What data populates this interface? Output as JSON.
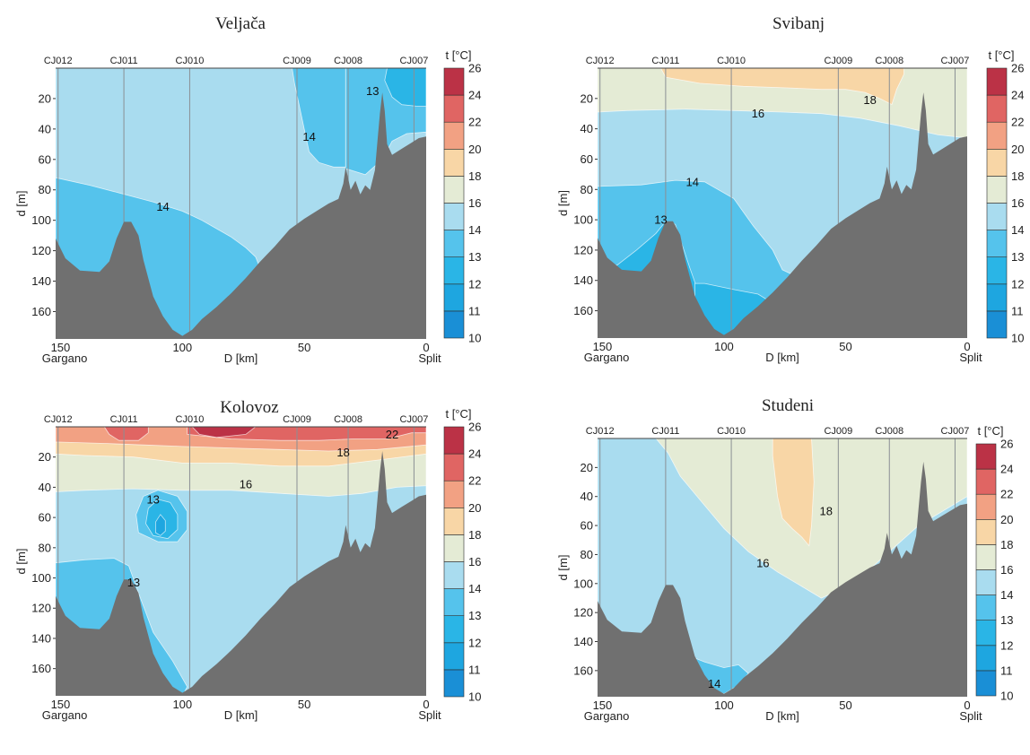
{
  "figure": {
    "colorbar": {
      "label": "t [°C]",
      "levels": [
        10,
        11,
        12,
        13,
        14,
        16,
        18,
        20,
        22,
        24,
        26
      ],
      "colors": [
        "#1a8fd6",
        "#1ea6e0",
        "#2ab5e6",
        "#55c3ec",
        "#a9dcef",
        "#e4ebd5",
        "#f8d6a6",
        "#f2a183",
        "#e06563",
        "#bb3246"
      ]
    }
  },
  "chart_data": [
    {
      "type": "heatmap",
      "title": "Veljača",
      "xlabel": "D [km]",
      "ylabel": "d [m]",
      "xlim": [
        152,
        0
      ],
      "ylim": [
        178,
        0
      ],
      "x_ticks": [
        "150",
        "100",
        "50",
        "0"
      ],
      "x_endpoints": [
        "Gargano",
        "Split"
      ],
      "y_ticks": [
        "20",
        "40",
        "60",
        "80",
        "100",
        "120",
        "140",
        "160"
      ],
      "stations": [
        {
          "name": "CJ012",
          "km": 151
        },
        {
          "name": "CJ011",
          "km": 124
        },
        {
          "name": "CJ010",
          "km": 97
        },
        {
          "name": "CJ009",
          "km": 53
        },
        {
          "name": "CJ008",
          "km": 32
        },
        {
          "name": "CJ007",
          "km": 5
        }
      ],
      "isotherm_labels": [
        {
          "text": "13",
          "km": 22,
          "depth": 15
        },
        {
          "text": "14",
          "km": 48,
          "depth": 45
        },
        {
          "text": "14",
          "km": 108,
          "depth": 91
        }
      ]
    },
    {
      "type": "heatmap",
      "title": "Svibanj",
      "xlabel": "D [km]",
      "ylabel": "d [m]",
      "xlim": [
        152,
        0
      ],
      "ylim": [
        178,
        0
      ],
      "x_ticks": [
        "150",
        "100",
        "50",
        "0"
      ],
      "x_endpoints": [
        "Gargano",
        "Split"
      ],
      "y_ticks": [
        "20",
        "40",
        "60",
        "80",
        "100",
        "120",
        "140",
        "160"
      ],
      "stations": [
        {
          "name": "CJ012",
          "km": 151
        },
        {
          "name": "CJ011",
          "km": 124
        },
        {
          "name": "CJ010",
          "km": 97
        },
        {
          "name": "CJ009",
          "km": 53
        },
        {
          "name": "CJ008",
          "km": 32
        },
        {
          "name": "CJ007",
          "km": 5
        }
      ],
      "isotherm_labels": [
        {
          "text": "18",
          "km": 40,
          "depth": 21
        },
        {
          "text": "16",
          "km": 86,
          "depth": 30
        },
        {
          "text": "14",
          "km": 113,
          "depth": 75
        },
        {
          "text": "13",
          "km": 126,
          "depth": 100
        }
      ]
    },
    {
      "type": "heatmap",
      "title": "Kolovoz",
      "xlabel": "D [km]",
      "ylabel": "d [m]",
      "xlim": [
        152,
        0
      ],
      "ylim": [
        178,
        0
      ],
      "x_ticks": [
        "150",
        "100",
        "50",
        "0"
      ],
      "x_endpoints": [
        "Gargano",
        "Split"
      ],
      "y_ticks": [
        "20",
        "40",
        "60",
        "80",
        "100",
        "120",
        "140",
        "160"
      ],
      "stations": [
        {
          "name": "CJ012",
          "km": 151
        },
        {
          "name": "CJ011",
          "km": 124
        },
        {
          "name": "CJ010",
          "km": 97
        },
        {
          "name": "CJ009",
          "km": 53
        },
        {
          "name": "CJ008",
          "km": 32
        },
        {
          "name": "CJ007",
          "km": 5
        }
      ],
      "isotherm_labels": [
        {
          "text": "22",
          "km": 14,
          "depth": 5
        },
        {
          "text": "18",
          "km": 34,
          "depth": 17
        },
        {
          "text": "16",
          "km": 74,
          "depth": 38
        },
        {
          "text": "13",
          "km": 112,
          "depth": 48
        },
        {
          "text": "13",
          "km": 120,
          "depth": 103
        }
      ]
    },
    {
      "type": "heatmap",
      "title": "Studeni",
      "xlabel": "D [km]",
      "ylabel": "d [m]",
      "xlim": [
        152,
        0
      ],
      "ylim": [
        178,
        0
      ],
      "x_ticks": [
        "150",
        "100",
        "50",
        "0"
      ],
      "x_endpoints": [
        "Gargano",
        "Split"
      ],
      "y_ticks": [
        "20",
        "40",
        "60",
        "80",
        "100",
        "120",
        "140",
        "160"
      ],
      "stations": [
        {
          "name": "CJ012",
          "km": 151
        },
        {
          "name": "CJ011",
          "km": 124
        },
        {
          "name": "CJ010",
          "km": 97
        },
        {
          "name": "CJ009",
          "km": 53
        },
        {
          "name": "CJ008",
          "km": 32
        },
        {
          "name": "CJ007",
          "km": 5
        }
      ],
      "isotherm_labels": [
        {
          "text": "18",
          "km": 58,
          "depth": 50
        },
        {
          "text": "16",
          "km": 84,
          "depth": 86
        },
        {
          "text": "14",
          "km": 104,
          "depth": 169
        }
      ]
    }
  ]
}
